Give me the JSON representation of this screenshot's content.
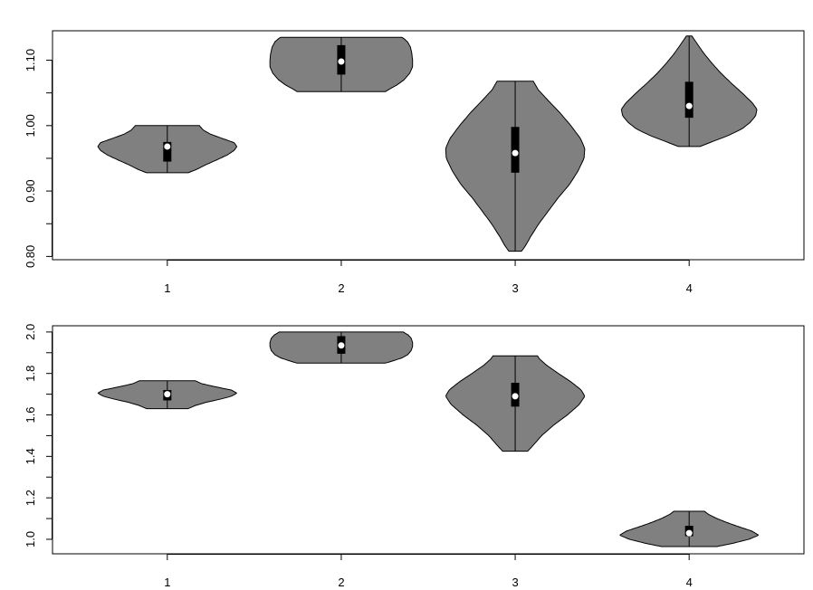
{
  "chart_data": [
    {
      "type": "violin",
      "categories": [
        "1",
        "2",
        "3",
        "4"
      ],
      "ylim": [
        0.795,
        1.145
      ],
      "yticks": [
        0.8,
        0.85,
        0.9,
        0.95,
        1.0,
        1.05,
        1.1
      ],
      "ytick_labels": [
        "0.80",
        "",
        "0.90",
        "",
        "1.00",
        "",
        "1.10"
      ],
      "violins": [
        {
          "min": 0.928,
          "max": 1.0,
          "q1": 0.945,
          "q3": 0.975,
          "median": 0.968,
          "halfwidth": 0.4,
          "profile": [
            [
              0.928,
              0.3
            ],
            [
              0.933,
              0.42
            ],
            [
              0.94,
              0.55
            ],
            [
              0.948,
              0.72
            ],
            [
              0.955,
              0.86
            ],
            [
              0.962,
              0.96
            ],
            [
              0.968,
              1.0
            ],
            [
              0.974,
              0.96
            ],
            [
              0.98,
              0.8
            ],
            [
              0.987,
              0.62
            ],
            [
              0.993,
              0.52
            ],
            [
              1.0,
              0.46
            ]
          ]
        },
        {
          "min": 1.052,
          "max": 1.135,
          "q1": 1.078,
          "q3": 1.123,
          "median": 1.098,
          "halfwidth": 0.41,
          "profile": [
            [
              1.052,
              0.62
            ],
            [
              1.056,
              0.68
            ],
            [
              1.062,
              0.78
            ],
            [
              1.07,
              0.88
            ],
            [
              1.08,
              0.96
            ],
            [
              1.09,
              1.0
            ],
            [
              1.1,
              1.0
            ],
            [
              1.11,
              0.99
            ],
            [
              1.12,
              0.97
            ],
            [
              1.128,
              0.93
            ],
            [
              1.132,
              0.89
            ],
            [
              1.135,
              0.85
            ]
          ]
        },
        {
          "min": 0.808,
          "max": 1.068,
          "q1": 0.928,
          "q3": 0.998,
          "median": 0.958,
          "halfwidth": 0.4,
          "profile": [
            [
              0.808,
              0.09
            ],
            [
              0.815,
              0.14
            ],
            [
              0.83,
              0.22
            ],
            [
              0.85,
              0.34
            ],
            [
              0.87,
              0.48
            ],
            [
              0.89,
              0.62
            ],
            [
              0.91,
              0.78
            ],
            [
              0.93,
              0.9
            ],
            [
              0.95,
              0.99
            ],
            [
              0.965,
              1.0
            ],
            [
              0.98,
              0.94
            ],
            [
              1.0,
              0.8
            ],
            [
              1.02,
              0.64
            ],
            [
              1.04,
              0.46
            ],
            [
              1.055,
              0.33
            ],
            [
              1.068,
              0.26
            ]
          ]
        },
        {
          "min": 0.968,
          "max": 1.137,
          "q1": 1.012,
          "q3": 1.067,
          "median": 1.03,
          "halfwidth": 0.39,
          "profile": [
            [
              0.968,
              0.16
            ],
            [
              0.975,
              0.33
            ],
            [
              0.985,
              0.58
            ],
            [
              0.995,
              0.78
            ],
            [
              1.005,
              0.9
            ],
            [
              1.015,
              0.98
            ],
            [
              1.025,
              1.0
            ],
            [
              1.035,
              0.93
            ],
            [
              1.05,
              0.78
            ],
            [
              1.065,
              0.62
            ],
            [
              1.08,
              0.47
            ],
            [
              1.095,
              0.34
            ],
            [
              1.11,
              0.22
            ],
            [
              1.125,
              0.12
            ],
            [
              1.137,
              0.04
            ]
          ]
        }
      ]
    },
    {
      "type": "violin",
      "categories": [
        "1",
        "2",
        "3",
        "4"
      ],
      "ylim": [
        0.93,
        2.03
      ],
      "yticks": [
        1.0,
        1.1,
        1.2,
        1.3,
        1.4,
        1.5,
        1.6,
        1.7,
        1.8,
        1.9,
        2.0
      ],
      "ytick_labels": [
        "1.0",
        "",
        "1.2",
        "",
        "1.4",
        "",
        "1.6",
        "",
        "1.8",
        "",
        "2.0"
      ],
      "violins": [
        {
          "min": 1.63,
          "max": 1.765,
          "q1": 1.67,
          "q3": 1.72,
          "median": 1.7,
          "halfwidth": 0.4,
          "profile": [
            [
              1.63,
              0.3
            ],
            [
              1.645,
              0.4
            ],
            [
              1.66,
              0.55
            ],
            [
              1.675,
              0.75
            ],
            [
              1.69,
              0.92
            ],
            [
              1.705,
              1.0
            ],
            [
              1.72,
              0.92
            ],
            [
              1.735,
              0.7
            ],
            [
              1.75,
              0.5
            ],
            [
              1.765,
              0.4
            ]
          ]
        },
        {
          "min": 1.85,
          "max": 2.0,
          "q1": 1.895,
          "q3": 1.98,
          "median": 1.935,
          "halfwidth": 0.41,
          "profile": [
            [
              1.85,
              0.62
            ],
            [
              1.86,
              0.72
            ],
            [
              1.875,
              0.85
            ],
            [
              1.89,
              0.93
            ],
            [
              1.91,
              0.98
            ],
            [
              1.93,
              1.0
            ],
            [
              1.95,
              1.0
            ],
            [
              1.97,
              0.98
            ],
            [
              1.985,
              0.94
            ],
            [
              2.0,
              0.87
            ]
          ]
        },
        {
          "min": 1.425,
          "max": 1.885,
          "q1": 1.64,
          "q3": 1.755,
          "median": 1.69,
          "halfwidth": 0.4,
          "profile": [
            [
              1.425,
              0.18
            ],
            [
              1.45,
              0.25
            ],
            [
              1.5,
              0.38
            ],
            [
              1.55,
              0.55
            ],
            [
              1.6,
              0.75
            ],
            [
              1.65,
              0.92
            ],
            [
              1.69,
              1.0
            ],
            [
              1.72,
              0.95
            ],
            [
              1.76,
              0.8
            ],
            [
              1.8,
              0.62
            ],
            [
              1.84,
              0.45
            ],
            [
              1.87,
              0.35
            ],
            [
              1.885,
              0.32
            ]
          ]
        },
        {
          "min": 0.965,
          "max": 1.135,
          "q1": 1.015,
          "q3": 1.065,
          "median": 1.03,
          "halfwidth": 0.4,
          "profile": [
            [
              0.965,
              0.4
            ],
            [
              0.98,
              0.62
            ],
            [
              1.0,
              0.86
            ],
            [
              1.02,
              1.0
            ],
            [
              1.04,
              0.9
            ],
            [
              1.06,
              0.72
            ],
            [
              1.08,
              0.55
            ],
            [
              1.1,
              0.4
            ],
            [
              1.12,
              0.28
            ],
            [
              1.135,
              0.22
            ]
          ]
        }
      ]
    }
  ]
}
